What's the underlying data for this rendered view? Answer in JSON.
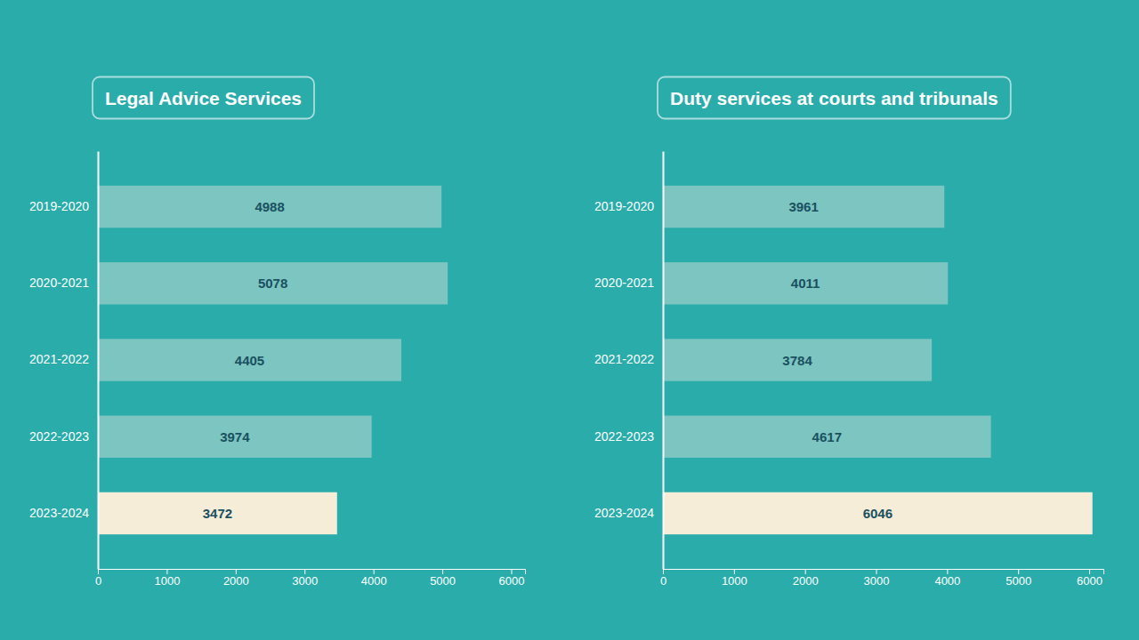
{
  "chart_data": [
    {
      "type": "bar",
      "orientation": "horizontal",
      "title": "Legal Advice Services",
      "categories": [
        "2019-2020",
        "2020-2021",
        "2021-2022",
        "2022-2023",
        "2023-2024"
      ],
      "values": [
        4988,
        5078,
        4405,
        3974,
        3472
      ],
      "colors": [
        "#7cc5c0",
        "#7cc5c0",
        "#7cc5c0",
        "#7cc5c0",
        "#f5edd8"
      ],
      "xlim": [
        0,
        6200
      ],
      "xticks": [
        0,
        1000,
        2000,
        3000,
        4000,
        5000,
        6000
      ],
      "data_labels": true,
      "grid": false
    },
    {
      "type": "bar",
      "orientation": "horizontal",
      "title": "Duty services at courts and tribunals",
      "categories": [
        "2019-2020",
        "2020-2021",
        "2021-2022",
        "2022-2023",
        "2023-2024"
      ],
      "values": [
        3961,
        4011,
        3784,
        4617,
        6046
      ],
      "colors": [
        "#7cc5c0",
        "#7cc5c0",
        "#7cc5c0",
        "#7cc5c0",
        "#f5edd8"
      ],
      "xlim": [
        0,
        6200
      ],
      "xticks": [
        0,
        1000,
        2000,
        3000,
        4000,
        5000,
        6000
      ],
      "data_labels": true,
      "grid": false
    }
  ]
}
